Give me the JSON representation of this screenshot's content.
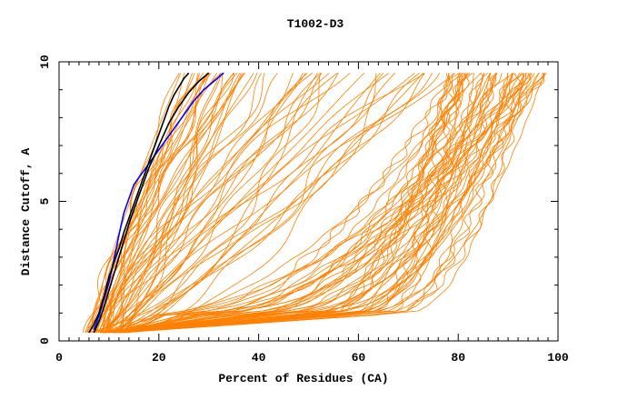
{
  "chart_data": {
    "type": "line",
    "title": "T1002-D3",
    "xlabel": "Percent of Residues (CA)",
    "ylabel": "Distance Cutoff, A",
    "xlim": [
      0,
      100
    ],
    "ylim": [
      0,
      10
    ],
    "x_ticks": [
      "0",
      "20",
      "40",
      "60",
      "80",
      "100"
    ],
    "y_ticks": [
      "0",
      "5",
      "10"
    ],
    "grid": false,
    "colors": {
      "models": "#ff8000",
      "highlight_blue": "#0000ff",
      "highlight_black": "#000000"
    },
    "series": [
      {
        "name": "highlight-blue",
        "color": "#0000ff",
        "x": [
          7,
          8,
          9,
          10,
          11,
          12,
          13,
          14,
          15,
          17,
          19,
          21,
          23,
          25,
          27,
          29,
          31,
          33
        ],
        "y": [
          0.4,
          0.9,
          1.5,
          2.1,
          2.9,
          3.8,
          4.6,
          5.1,
          5.6,
          6.1,
          6.6,
          7.1,
          7.6,
          8.1,
          8.6,
          9.0,
          9.3,
          9.6
        ]
      },
      {
        "name": "highlight-black-1",
        "color": "#000000",
        "x": [
          6,
          7,
          8,
          9,
          10,
          11,
          12,
          13,
          14,
          15,
          16,
          17,
          18,
          19,
          20,
          21,
          22,
          23,
          24,
          25,
          26
        ],
        "y": [
          0.3,
          0.6,
          1.0,
          1.6,
          2.3,
          2.8,
          3.3,
          3.9,
          4.4,
          4.9,
          5.4,
          5.9,
          6.4,
          6.9,
          7.4,
          7.9,
          8.4,
          8.8,
          9.1,
          9.4,
          9.6
        ]
      },
      {
        "name": "highlight-black-2",
        "color": "#000000",
        "x": [
          7,
          8,
          9,
          10,
          11,
          12,
          13,
          14,
          15,
          16,
          17,
          18,
          19,
          20,
          21,
          22,
          24,
          26,
          28,
          30
        ],
        "y": [
          0.3,
          0.7,
          1.2,
          1.8,
          2.4,
          3.0,
          3.6,
          4.2,
          4.7,
          5.2,
          5.7,
          6.2,
          6.6,
          7.0,
          7.4,
          7.8,
          8.4,
          8.9,
          9.3,
          9.6
        ]
      }
    ]
  }
}
